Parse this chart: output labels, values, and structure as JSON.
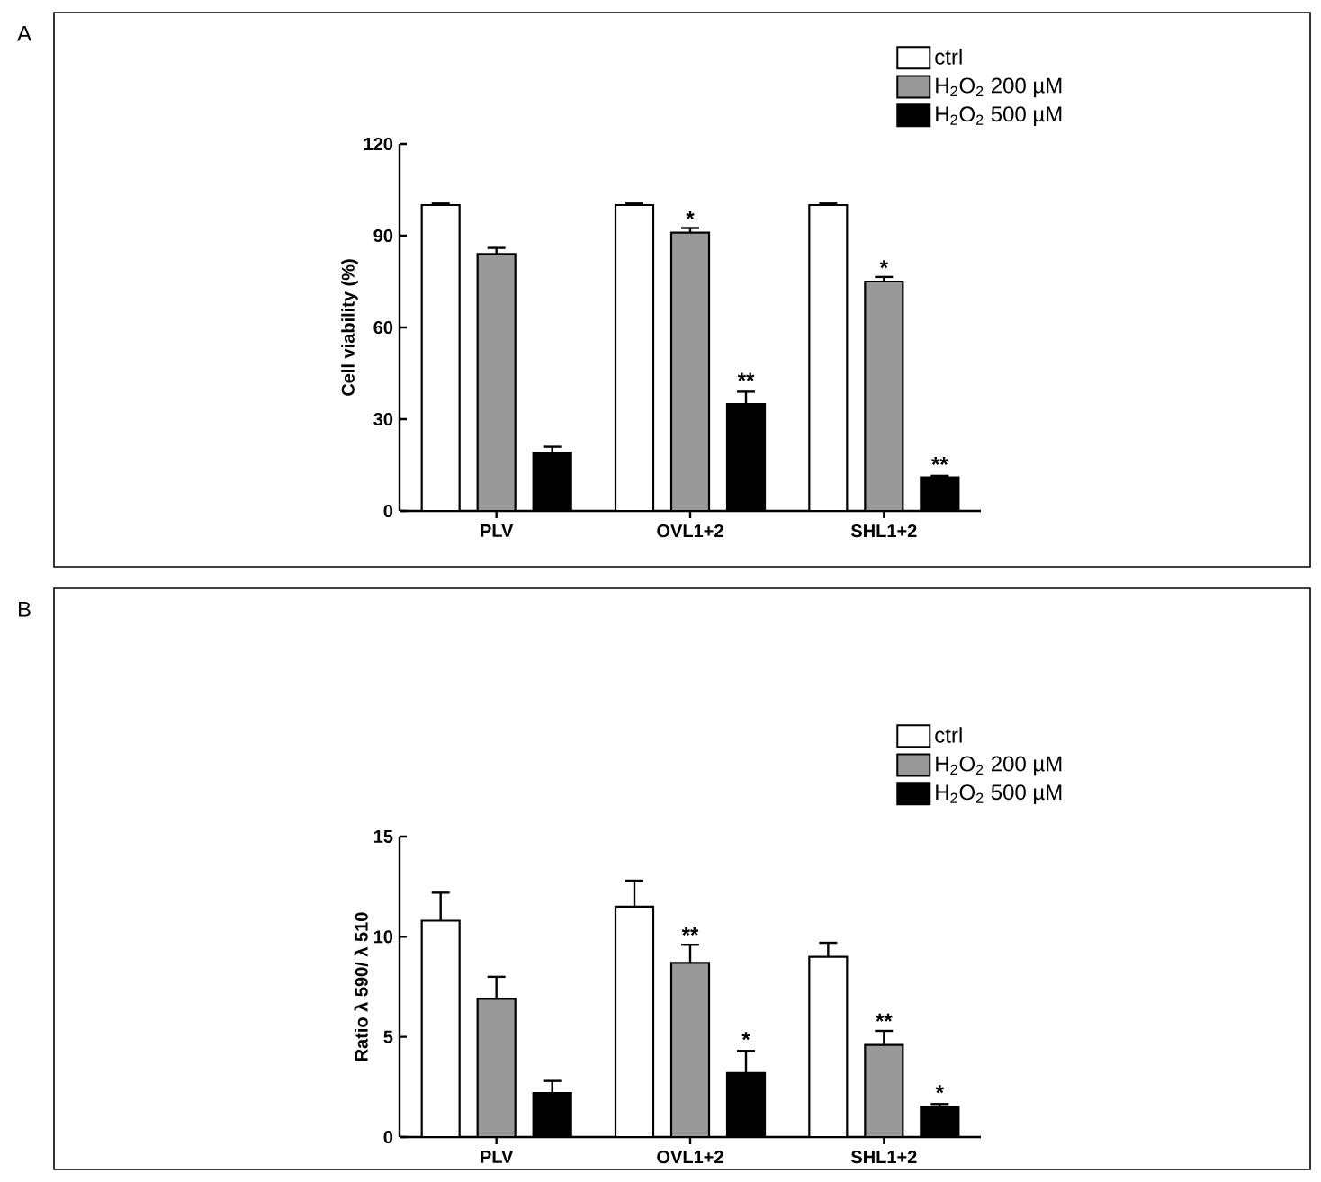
{
  "chart_data": [
    {
      "type": "bar",
      "ylabel": "Cell viability (%)",
      "categories": [
        "PLV",
        "OVL1+2",
        "SHL1+2"
      ],
      "series": [
        {
          "name": "ctrl",
          "color": "#ffffff",
          "values": [
            100,
            100,
            100
          ],
          "errors": [
            0.5,
            0.5,
            0.5
          ]
        },
        {
          "name": "H$_{2}$O$_{2}$ 200 µM",
          "color": "#999999",
          "values": [
            84,
            91,
            75
          ],
          "errors": [
            2,
            1.5,
            1.5
          ]
        },
        {
          "name": "H$_{2}$O$_{2}$ 500 µM",
          "color": "#000000",
          "values": [
            19,
            35,
            11
          ],
          "errors": [
            2,
            4,
            0.5
          ]
        }
      ],
      "ylim": [
        0,
        120
      ],
      "yticks": [
        0,
        30,
        60,
        90,
        120
      ],
      "legend": "top right",
      "annotations": [
        {
          "text": "*",
          "x": "OVL1+2",
          "y": 93
        },
        {
          "text": "*",
          "x": "SHL1+2",
          "y": 77
        },
        "**",
        "**",
        "A"
      ]
    },
    {
      "type": "bar",
      "ylabel": "Ratio λ 590/ λ 510",
      "categories": [
        "PLV",
        "OVL1+2",
        "SHL1+2"
      ],
      "series": [
        {
          "name": "ctrl",
          "color": "#ffffff",
          "values": [
            10.8,
            11.5,
            9.0
          ],
          "errors": [
            1.4,
            1.3,
            0.7
          ]
        },
        {
          "name": "H$_{2}$O$_{2}$ 200 µM",
          "color": "#999999",
          "values": [
            6.9,
            8.7,
            4.6
          ],
          "errors": [
            1.1,
            0.9,
            0.7
          ]
        },
        {
          "name": "H$_{2}$O$_{2}$ 500 µM",
          "color": "#000000",
          "values": [
            2.2,
            3.2,
            1.5
          ],
          "errors": [
            0.6,
            1.1,
            0.15
          ]
        }
      ],
      "ylim": [
        0,
        15
      ],
      "yticks": [
        0,
        5,
        10,
        15
      ],
      "legend": "top right",
      "annotations": [
        {
          "text": "**",
          "x": "OVL1+2",
          "y": 9.7
        },
        {
          "text": "**",
          "x": "SHL1+2",
          "y": 5.4
        },
        "*",
        "*",
        "B"
      ]
    }
  ]
}
